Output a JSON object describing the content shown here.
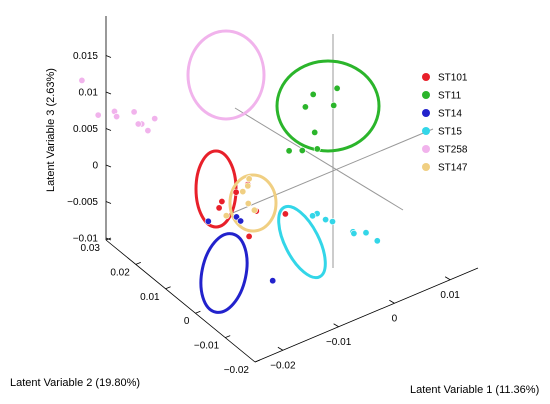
{
  "chart_data": {
    "type": "scatter",
    "projection": "3d",
    "title": "",
    "x_axis": {
      "label": "Latent Variable 1 (11.36%)",
      "range": [
        -0.025,
        0.015
      ],
      "ticks": [
        -0.02,
        -0.01,
        0,
        0.01
      ],
      "tick_labels": [
        "−0.02",
        "−0.01",
        "0",
        "0.01"
      ]
    },
    "y_axis": {
      "label": "Latent Variable 2 (19.80%)",
      "range": [
        -0.02,
        0.03
      ],
      "ticks": [
        -0.02,
        -0.01,
        0,
        0.01,
        0.02,
        0.03
      ],
      "tick_labels": [
        "−0.02",
        "−0.01",
        "0",
        "0.01",
        "0.02",
        "0.03"
      ]
    },
    "z_axis": {
      "label": "Latent Variable 3 (2.63%)",
      "range": [
        -0.012,
        0.015
      ],
      "ticks": [
        -0.01,
        -0.005,
        0,
        0.005,
        0.01,
        0.015
      ],
      "tick_labels": [
        "−0.01",
        "−0.005",
        "0",
        "0.005",
        "0.01",
        "0.015"
      ]
    },
    "legend_position": "right",
    "series": [
      {
        "name": "ST101",
        "color": "#e8202a",
        "points": [
          [
            -0.0149,
            0.0047,
            -0.0017
          ],
          [
            -0.0129,
            0.0042,
            -0.0009
          ],
          [
            -0.0117,
            0.0034,
            0
          ],
          [
            -0.0129,
            0.0068,
            -0.0038
          ],
          [
            -0.0111,
            0.0026,
            -0.0036
          ],
          [
            -0.0102,
            -0.0011,
            -0.0032
          ],
          [
            -0.0098,
            0.0048,
            -0.0081
          ]
        ]
      },
      {
        "name": "ST11",
        "color": "#2bb52b",
        "points": [
          [
            0.0037,
            0.0063,
            0.0067
          ],
          [
            0.0082,
            0.0064,
            0.0061
          ],
          [
            0.0036,
            0.0074,
            0.0047
          ],
          [
            0.0046,
            0.0039,
            0.0056
          ],
          [
            -0.0002,
            0.0047,
            0.0007
          ],
          [
            -0.0026,
            0.0047,
            0.0014
          ],
          [
            0.0022,
            0.0048,
            0.0024
          ],
          [
            0.0041,
            0.006,
            -0.0008
          ]
        ]
      },
      {
        "name": "ST14",
        "color": "#2222cc",
        "points": [
          [
            -0.0057,
            0.0145,
            -0.0101
          ],
          [
            -0.004,
            0.0116,
            -0.0092
          ],
          [
            -0.0036,
            0.0113,
            -0.0098
          ],
          [
            -0.0037,
            0.0063,
            -0.0165
          ]
        ]
      },
      {
        "name": "ST15",
        "color": "#33d6e8",
        "points": [
          [
            0.0018,
            0.0041,
            -0.0084
          ],
          [
            0.0036,
            0.0063,
            -0.0099
          ],
          [
            0.0037,
            0.0044,
            -0.0099
          ],
          [
            0.0052,
            0.0046,
            -0.0107
          ],
          [
            0.0043,
            0.0007,
            -0.0107
          ],
          [
            0.0055,
            -0.0003,
            -0.0109
          ],
          [
            0.0065,
            0.0024,
            -0.0121
          ],
          [
            0.006,
            -0.0016,
            -0.0118
          ]
        ]
      },
      {
        "name": "ST258",
        "color": "#f1b3ec",
        "points": [
          [
            -0.0145,
            0.0265,
            0.0085
          ],
          [
            -0.0133,
            0.025,
            0.0038
          ],
          [
            -0.012,
            0.0236,
            0.0043
          ],
          [
            -0.0115,
            0.0237,
            0.0034
          ],
          [
            -0.0102,
            0.0221,
            0.0041
          ],
          [
            -0.0106,
            0.0206,
            0.003
          ],
          [
            -0.0098,
            0.0218,
            0.0024
          ],
          [
            -0.0093,
            0.0197,
            0.0036
          ],
          [
            -0.0103,
            0.0199,
            0.0022
          ]
        ]
      },
      {
        "name": "ST147",
        "color": "#f0cf82",
        "points": [
          [
            -0.0088,
            0.0066,
            -0.0028
          ],
          [
            -0.0079,
            0.0066,
            -0.0023
          ],
          [
            -0.0073,
            0.0069,
            -0.0016
          ],
          [
            -0.0084,
            0.0061,
            -0.0044
          ],
          [
            -0.0074,
            0.006,
            -0.0056
          ],
          [
            -0.0092,
            0.0088,
            -0.0066
          ]
        ]
      }
    ],
    "clusters": [
      {
        "name": "ST101",
        "color": "#e8202a"
      },
      {
        "name": "ST11",
        "color": "#2bb52b"
      },
      {
        "name": "ST14",
        "color": "#2222cc"
      },
      {
        "name": "ST15",
        "color": "#33d6e8"
      },
      {
        "name": "ST258",
        "color": "#f1b3ec"
      },
      {
        "name": "ST147",
        "color": "#f0cf82"
      }
    ]
  }
}
